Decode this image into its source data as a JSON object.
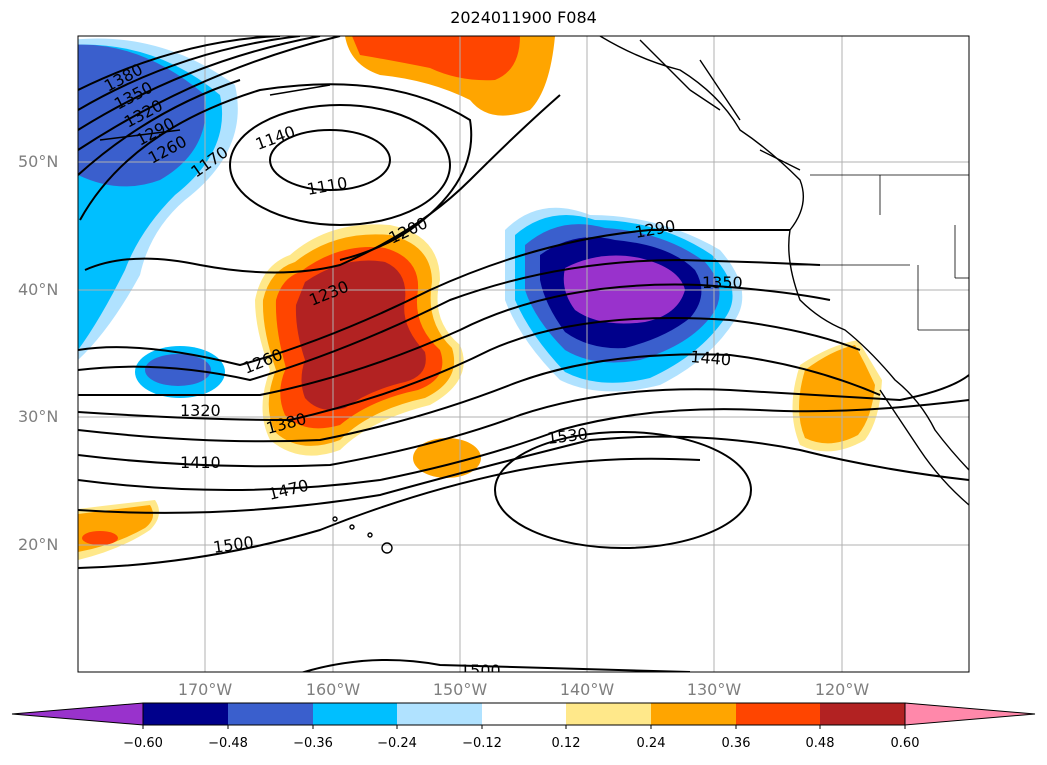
{
  "title": "2024011900 F084",
  "lat_labels": [
    "50°N",
    "40°N",
    "30°N",
    "20°N"
  ],
  "lon_labels": [
    "170°W",
    "160°W",
    "150°W",
    "140°W",
    "130°W",
    "120°W"
  ],
  "contour_labels": [
    "1380",
    "1350",
    "1320",
    "1290",
    "1260",
    "1170",
    "1140",
    "1110",
    "1200",
    "1230",
    "1260",
    "1290",
    "1320",
    "1350",
    "1380",
    "1410",
    "1440",
    "1470",
    "1500",
    "1530",
    "1500"
  ],
  "colorbar": {
    "colors": [
      "#9932cc",
      "#00008b",
      "#3a5fcd",
      "#00bfff",
      "#b0e2ff",
      "#ffffff",
      "#ffe88a",
      "#ffa500",
      "#ff4500",
      "#b22222",
      "#ff88aa"
    ],
    "ticks": [
      "−0.60",
      "−0.48",
      "−0.36",
      "−0.24",
      "−0.12",
      "0.12",
      "0.24",
      "0.36",
      "0.48",
      "0.60"
    ]
  }
}
